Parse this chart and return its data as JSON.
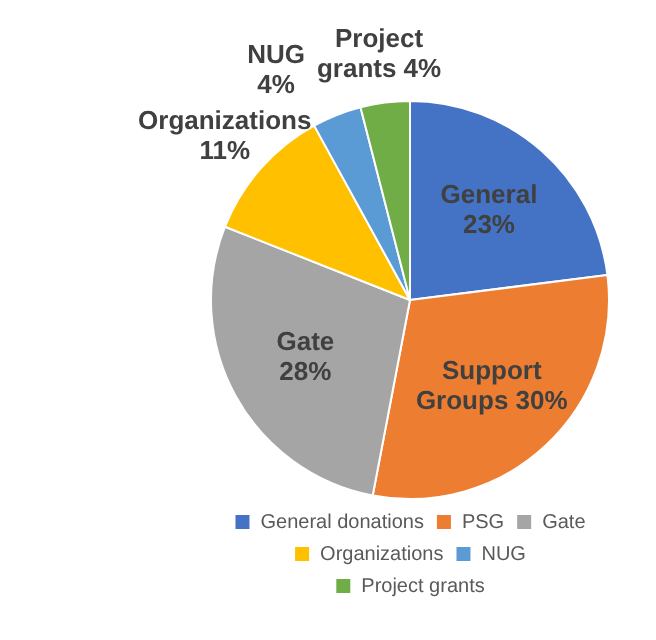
{
  "chart_data": {
    "type": "pie",
    "categories": [
      "General donations",
      "PSG",
      "Gate",
      "Organizations",
      "NUG",
      "Project grants"
    ],
    "values": [
      23,
      30,
      28,
      11,
      4,
      4
    ],
    "colors": [
      "#4472c4",
      "#ed7d31",
      "#a5a5a5",
      "#ffc000",
      "#5b9bd5",
      "#70ad47"
    ],
    "value_labels": [
      "General 23%",
      "Support Groups 30%",
      "Gate 28%",
      "Organizations 11%",
      "NUG 4%",
      "Project grants 4%"
    ],
    "legend": "bottom"
  }
}
